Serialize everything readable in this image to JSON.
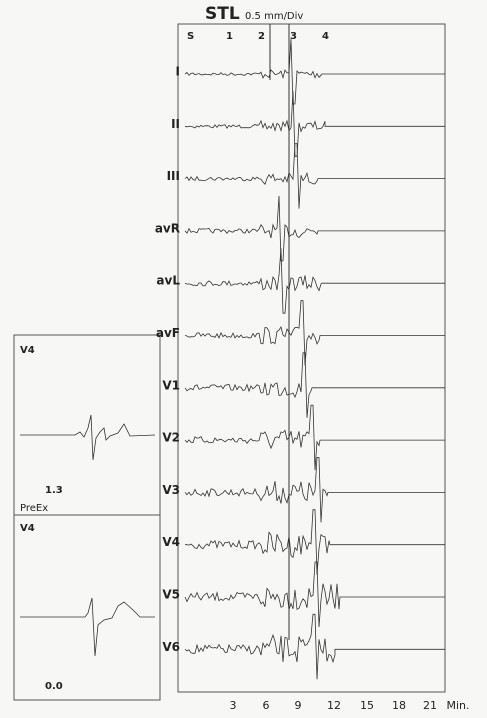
{
  "header": {
    "title": "STL",
    "scale": "0.5 mm/Div"
  },
  "stage_markers": [
    "S",
    "1",
    "2",
    "3",
    "4"
  ],
  "leads": [
    "I",
    "II",
    "III",
    "avR",
    "avL",
    "avF",
    "V1",
    "V2",
    "V3",
    "V4",
    "V5",
    "V6"
  ],
  "x_axis": {
    "ticks": [
      "3",
      "6",
      "9",
      "12",
      "15",
      "18",
      "21"
    ],
    "unit": "Min."
  },
  "panels": [
    {
      "lead": "V4",
      "value": "1.3"
    },
    {
      "label": "PreEx",
      "lead": "V4",
      "value": "0.0"
    }
  ]
}
